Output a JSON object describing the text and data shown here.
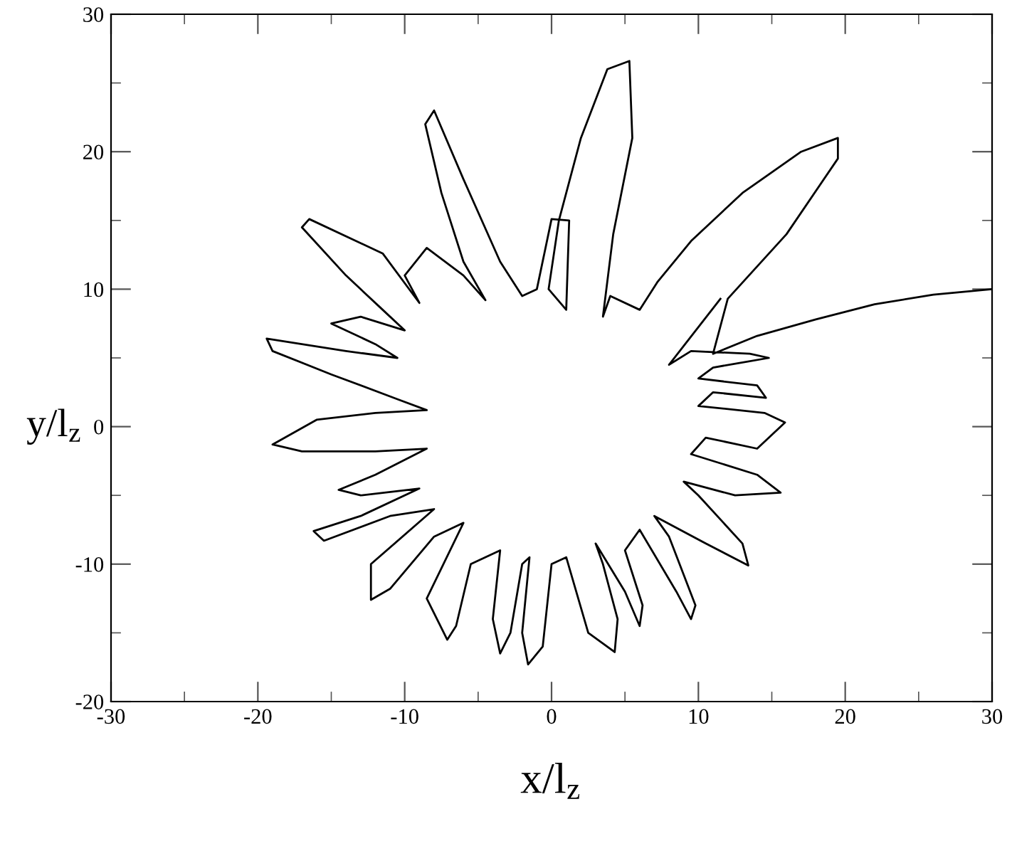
{
  "chart_data": {
    "type": "line",
    "xlabel": "x/l$_{z}$",
    "ylabel": "y/l$_{z}$",
    "xlim": [
      -30,
      30
    ],
    "ylim": [
      -20,
      30
    ],
    "xticks": [
      -30,
      -20,
      -10,
      0,
      10,
      20,
      30
    ],
    "yticks": [
      -20,
      -10,
      0,
      10,
      20,
      30
    ],
    "grid": false,
    "legend": false,
    "marker": "none",
    "line_style": "solid",
    "series": [
      {
        "color": "#000000",
        "x": [
          30,
          26,
          22,
          18,
          14,
          11,
          12,
          16,
          19.5,
          19.5,
          17,
          13,
          9.5,
          7.2,
          6,
          4,
          3.5,
          4.2,
          5.5,
          5.3,
          3.8,
          2,
          0.5,
          -0.2,
          1,
          1.2,
          0,
          -1,
          -2,
          -3.5,
          -6,
          -8,
          -8.6,
          -7.5,
          -6,
          -4.5,
          -6,
          -8.5,
          -10,
          -9,
          -11.5,
          -16.5,
          -17,
          -14,
          -11.5,
          -10,
          -13,
          -15,
          -12,
          -10.5,
          -14,
          -19.4,
          -19,
          -15,
          -10.5,
          -8.5,
          -12,
          -16,
          -19,
          -17,
          -12,
          -8.5,
          -12,
          -14.5,
          -13,
          -9,
          -13,
          -16.2,
          -15.5,
          -11,
          -8,
          -12.3,
          -12.3,
          -11,
          -8,
          -6,
          -8.5,
          -7.1,
          -6.5,
          -5.5,
          -3.5,
          -4,
          -3.5,
          -2.8,
          -2,
          -1.5,
          -2,
          -1.6,
          -0.6,
          0,
          1,
          2.5,
          4.3,
          4.5,
          3.5,
          3,
          5,
          6,
          6.2,
          5,
          6,
          8.5,
          9.5,
          9.8,
          8,
          7,
          10.5,
          13.4,
          13,
          10,
          9,
          12.5,
          15.6,
          14,
          9.5,
          10.5,
          14,
          15.9,
          14.5,
          10,
          11,
          14.6,
          14,
          10,
          11,
          14.8,
          13.5,
          9.5,
          8,
          11.5
        ],
        "values": [
          10,
          9.6,
          8.9,
          7.8,
          6.6,
          5.3,
          9.3,
          14,
          19.5,
          21,
          20,
          17,
          13.5,
          10.5,
          8.5,
          9.5,
          8,
          14,
          21,
          26.6,
          26,
          21,
          15,
          10,
          8.5,
          15,
          15.1,
          10,
          9.5,
          12,
          18,
          23,
          22,
          17,
          12,
          9.2,
          11,
          13,
          11,
          9,
          12.6,
          15.1,
          14.5,
          11,
          8.5,
          7,
          8,
          7.5,
          6,
          5,
          5.5,
          6.4,
          5.5,
          3.8,
          2,
          1.2,
          1,
          0.5,
          -1.3,
          -1.8,
          -1.8,
          -1.6,
          -3.5,
          -4.6,
          -5,
          -4.5,
          -6.5,
          -7.6,
          -8.3,
          -6.5,
          -6,
          -10,
          -12.6,
          -11.8,
          -8,
          -7,
          -12.5,
          -15.5,
          -14.5,
          -10,
          -9,
          -14,
          -16.5,
          -15,
          -10,
          -9.5,
          -15,
          -17.3,
          -16,
          -10,
          -9.5,
          -15,
          -16.4,
          -14,
          -10,
          -8.5,
          -12,
          -14.5,
          -13,
          -9,
          -7.5,
          -12,
          -14,
          -13,
          -8,
          -6.5,
          -8.5,
          -10.1,
          -8.5,
          -5,
          -4,
          -5,
          -4.8,
          -3.5,
          -2,
          -0.8,
          -1.6,
          0.3,
          1,
          1.5,
          2.5,
          2.1,
          3,
          3.5,
          4.3,
          5,
          5.3,
          5.5,
          4.5,
          9.3
        ]
      }
    ]
  }
}
